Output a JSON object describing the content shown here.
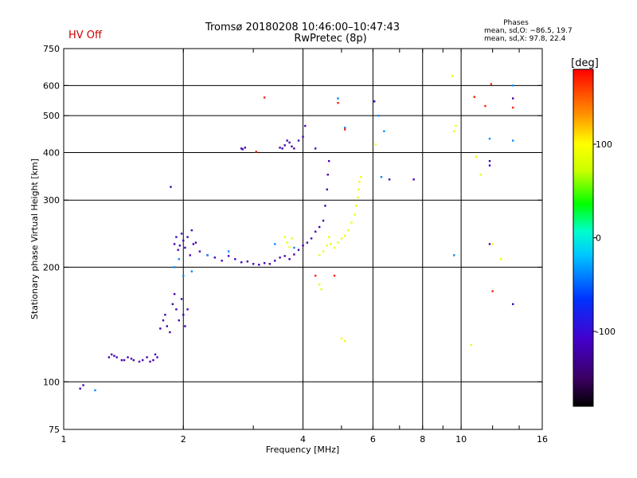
{
  "header": {
    "title": "Tromsø 20180208 10:46:00–10:47:43",
    "subtitle": "RwPretec (8p)",
    "hv_status": "HV Off",
    "phase_title": "Phases",
    "phase_o": "mean, sd,O: −86.5, 19.7",
    "phase_x": "mean, sd,X:  97.8, 22.4"
  },
  "colors": {
    "hv_status": "#cc0000"
  },
  "chart_data": {
    "type": "scatter",
    "title": "Tromsø 20180208 10:46:00–10:47:43",
    "subtitle": "RwPretec (8p)",
    "xlabel": "Frequency [MHz]",
    "ylabel": "Stationary phase Virtual Height [km]",
    "xscale": "log",
    "yscale": "log",
    "xlim": [
      1,
      16
    ],
    "ylim": [
      75,
      750
    ],
    "xticks": [
      1,
      2,
      4,
      6,
      8,
      10,
      16
    ],
    "yticks": [
      75,
      100,
      200,
      300,
      400,
      500,
      600,
      750
    ],
    "grid": true,
    "colorbar": {
      "label": "[deg]",
      "range": [
        -180,
        180
      ],
      "ticks": [
        100,
        0,
        -100
      ],
      "placement": "right",
      "colormap": "rainbow (black → violet → blue → cyan → green → yellow → red)"
    },
    "series": [
      {
        "phase_deg": -120,
        "points": [
          [
            1.1,
            96
          ],
          [
            1.12,
            98
          ],
          [
            1.3,
            116
          ],
          [
            1.32,
            118
          ],
          [
            1.34,
            117
          ],
          [
            1.36,
            116
          ],
          [
            1.4,
            114
          ],
          [
            1.42,
            114
          ],
          [
            1.45,
            116
          ],
          [
            1.48,
            115
          ],
          [
            1.5,
            114
          ],
          [
            1.55,
            113
          ],
          [
            1.58,
            114
          ],
          [
            1.62,
            116
          ],
          [
            1.65,
            113
          ],
          [
            1.68,
            114
          ],
          [
            1.7,
            118
          ],
          [
            1.72,
            116
          ],
          [
            1.75,
            138
          ],
          [
            1.78,
            145
          ],
          [
            1.8,
            150
          ],
          [
            1.82,
            140
          ],
          [
            1.85,
            135
          ],
          [
            1.88,
            160
          ],
          [
            1.9,
            170
          ],
          [
            1.92,
            155
          ],
          [
            1.95,
            145
          ],
          [
            1.98,
            165
          ],
          [
            2.0,
            150
          ],
          [
            2.02,
            140
          ],
          [
            2.05,
            155
          ],
          [
            1.86,
            325
          ],
          [
            1.9,
            230
          ],
          [
            1.92,
            240
          ],
          [
            1.94,
            222
          ],
          [
            1.96,
            228
          ],
          [
            1.98,
            245
          ],
          [
            2.0,
            235
          ],
          [
            2.02,
            225
          ],
          [
            2.05,
            240
          ],
          [
            2.08,
            215
          ],
          [
            2.1,
            250
          ],
          [
            2.12,
            230
          ],
          [
            2.15,
            232
          ],
          [
            2.2,
            220
          ],
          [
            2.3,
            215
          ],
          [
            2.4,
            212
          ],
          [
            2.5,
            208
          ],
          [
            2.6,
            214
          ],
          [
            2.7,
            210
          ],
          [
            2.8,
            206
          ],
          [
            2.9,
            207
          ],
          [
            3.0,
            204
          ],
          [
            3.1,
            203
          ],
          [
            3.2,
            205
          ],
          [
            3.3,
            204
          ],
          [
            3.4,
            208
          ],
          [
            3.5,
            212
          ],
          [
            3.6,
            214
          ],
          [
            3.7,
            210
          ],
          [
            3.8,
            216
          ],
          [
            3.9,
            222
          ],
          [
            4.0,
            228
          ],
          [
            4.1,
            232
          ],
          [
            4.2,
            238
          ],
          [
            4.3,
            248
          ],
          [
            4.4,
            255
          ],
          [
            4.5,
            265
          ],
          [
            4.55,
            290
          ],
          [
            4.6,
            320
          ],
          [
            4.62,
            350
          ],
          [
            4.65,
            380
          ],
          [
            2.8,
            410
          ],
          [
            2.82,
            408
          ],
          [
            2.86,
            412
          ],
          [
            3.5,
            412
          ],
          [
            3.55,
            410
          ],
          [
            3.6,
            418
          ],
          [
            3.65,
            430
          ],
          [
            3.7,
            425
          ],
          [
            3.75,
            415
          ],
          [
            3.8,
            410
          ],
          [
            3.9,
            430
          ],
          [
            4.0,
            440
          ],
          [
            4.05,
            470
          ],
          [
            4.3,
            410
          ],
          [
            6.05,
            545
          ],
          [
            6.6,
            340
          ],
          [
            7.6,
            340
          ],
          [
            11.8,
            370
          ],
          [
            11.8,
            380
          ],
          [
            11.8,
            230
          ],
          [
            13.5,
            160
          ],
          [
            13.5,
            555
          ]
        ]
      },
      {
        "phase_deg": -40,
        "points": [
          [
            1.9,
            200
          ],
          [
            1.95,
            210
          ],
          [
            2.0,
            190
          ],
          [
            2.1,
            195
          ],
          [
            2.3,
            215
          ],
          [
            2.6,
            220
          ],
          [
            3.4,
            230
          ],
          [
            3.8,
            225
          ],
          [
            4.9,
            555
          ],
          [
            5.1,
            465
          ],
          [
            6.4,
            455
          ],
          [
            6.2,
            500
          ],
          [
            6.3,
            345
          ],
          [
            9.6,
            215
          ],
          [
            11.8,
            435
          ],
          [
            13.5,
            430
          ],
          [
            13.5,
            600
          ],
          [
            1.2,
            95
          ]
        ]
      },
      {
        "phase_deg": 90,
        "points": [
          [
            3.6,
            240
          ],
          [
            3.65,
            232
          ],
          [
            3.7,
            226
          ],
          [
            3.75,
            238
          ],
          [
            4.4,
            215
          ],
          [
            4.5,
            220
          ],
          [
            4.6,
            228
          ],
          [
            4.65,
            240
          ],
          [
            4.7,
            230
          ],
          [
            4.8,
            225
          ],
          [
            4.9,
            232
          ],
          [
            5.0,
            238
          ],
          [
            5.1,
            242
          ],
          [
            5.2,
            250
          ],
          [
            5.3,
            262
          ],
          [
            5.4,
            275
          ],
          [
            5.45,
            290
          ],
          [
            5.5,
            305
          ],
          [
            5.52,
            320
          ],
          [
            5.55,
            335
          ],
          [
            5.6,
            345
          ],
          [
            4.4,
            180
          ],
          [
            4.45,
            175
          ],
          [
            5.0,
            130
          ],
          [
            5.1,
            128
          ],
          [
            6.1,
            420
          ],
          [
            9.5,
            635
          ],
          [
            9.6,
            455
          ],
          [
            9.7,
            470
          ],
          [
            10.6,
            125
          ],
          [
            10.9,
            390
          ],
          [
            11.2,
            350
          ],
          [
            12.0,
            230
          ],
          [
            12.6,
            210
          ]
        ]
      },
      {
        "phase_deg": 170,
        "points": [
          [
            3.2,
            558
          ],
          [
            3.05,
            402
          ],
          [
            4.3,
            190
          ],
          [
            4.8,
            190
          ],
          [
            4.9,
            540
          ],
          [
            5.1,
            460
          ],
          [
            10.8,
            560
          ],
          [
            11.5,
            530
          ],
          [
            11.9,
            605
          ],
          [
            12.0,
            173
          ],
          [
            13.5,
            525
          ]
        ]
      }
    ]
  }
}
